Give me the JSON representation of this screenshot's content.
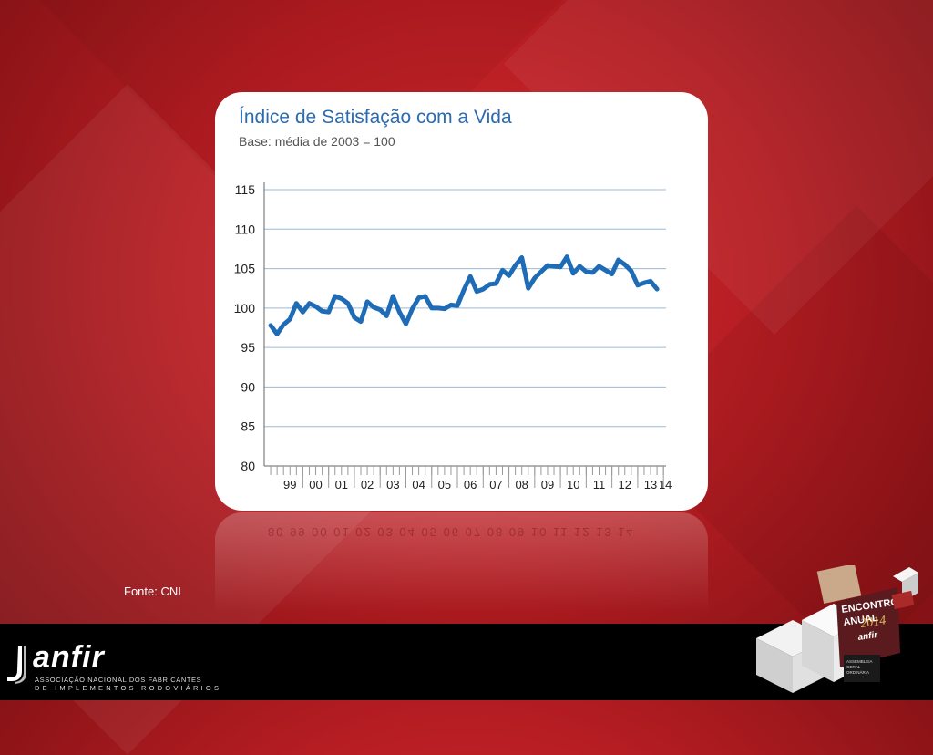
{
  "chart_data": {
    "type": "line",
    "title": "Índice de Satisfação com a Vida",
    "subtitle": "Base: média de 2003 = 100",
    "ylim": [
      80,
      115
    ],
    "yticks": [
      80,
      85,
      90,
      95,
      100,
      105,
      110,
      115
    ],
    "xlim": [
      1998.5,
      2014.1
    ],
    "xtick_labels": [
      "99",
      "00",
      "01",
      "02",
      "03",
      "04",
      "05",
      "06",
      "07",
      "08",
      "09",
      "10",
      "11",
      "12",
      "13",
      "14"
    ],
    "grid": "horizontal",
    "line_color": "#1f6cb6",
    "series": [
      {
        "x": [
          1998.75,
          1999.0,
          1999.25,
          1999.5,
          1999.75,
          2000.0,
          2000.25,
          2000.5,
          2000.75,
          2001.0,
          2001.25,
          2001.5,
          2001.75,
          2002.0,
          2002.25,
          2002.5,
          2002.75,
          2003.0,
          2003.25,
          2003.5,
          2003.75,
          2004.0,
          2004.25,
          2004.5,
          2004.75,
          2005.0,
          2005.25,
          2005.5,
          2005.75,
          2006.0,
          2006.25,
          2006.5,
          2006.75,
          2007.0,
          2007.25,
          2007.5,
          2007.75,
          2008.0,
          2008.25,
          2008.5,
          2008.75,
          2009.0,
          2009.25,
          2009.5,
          2009.75,
          2010.0,
          2010.25,
          2010.5,
          2010.75,
          2011.0,
          2011.25,
          2011.5,
          2011.75,
          2012.0,
          2012.25,
          2012.5,
          2012.75,
          2013.0,
          2013.25,
          2013.5,
          2013.75
        ],
        "values": [
          97.8,
          96.7,
          97.9,
          98.6,
          100.6,
          99.5,
          100.6,
          100.2,
          99.6,
          99.5,
          101.5,
          101.2,
          100.6,
          98.8,
          98.3,
          100.8,
          100.1,
          99.8,
          99.0,
          101.5,
          99.5,
          98.0,
          99.9,
          101.3,
          101.5,
          100.0,
          100.0,
          99.9,
          100.4,
          100.3,
          102.3,
          104.0,
          102.1,
          102.4,
          103.0,
          103.1,
          104.8,
          104.1,
          105.4,
          106.4,
          102.5,
          103.8,
          104.6,
          105.4,
          105.3,
          105.2,
          106.5,
          104.4,
          105.3,
          104.6,
          104.5,
          105.3,
          104.8,
          104.3,
          106.1,
          105.5,
          104.7,
          102.9,
          103.2,
          103.4,
          102.4
        ]
      }
    ]
  },
  "reflection_text": "80  99  00  01  02  03  04  05  06  07  08  09  10  11  12  13  14",
  "source": "Fonte: CNI",
  "logo": {
    "name": "anfir",
    "tagline_1": "ASSOCIAÇÃO NACIONAL DOS FABRICANTES",
    "tagline_2": "DE IMPLEMENTOS RODOVIÁRIOS"
  },
  "event_badge": {
    "line1": "ENCONTRO",
    "line2": "ANUAL",
    "year": "2014",
    "brand": "anfir",
    "small1": "ASSEMBLEIA",
    "small2": "GERAL",
    "small3": "ORDINÁRIA"
  }
}
